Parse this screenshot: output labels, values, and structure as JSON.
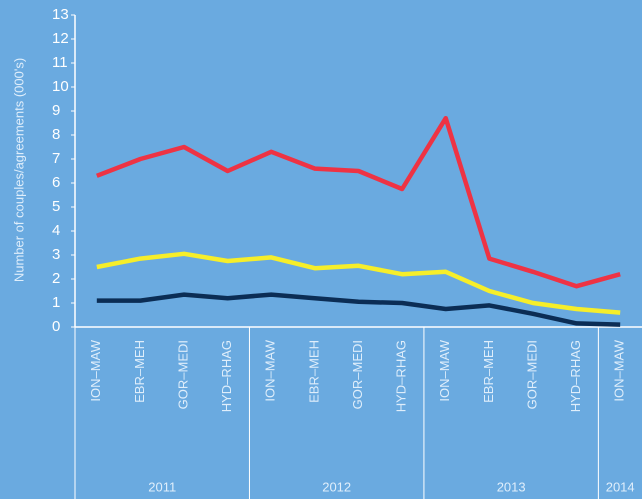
{
  "chart_data": {
    "type": "line",
    "y_label": "Number of couples/agreements (000's)",
    "categories": [
      "ION–MAW",
      "EBR–MEH",
      "GOR–MEDI",
      "HYD–RHAG",
      "ION–MAW",
      "EBR–MEH",
      "GOR–MEDI",
      "HYD–RHAG",
      "ION–MAW",
      "EBR–MEH",
      "GOR–MEDI",
      "HYD–RHAG",
      "ION–MAW"
    ],
    "groups": [
      {
        "label": "2011",
        "count": 4
      },
      {
        "label": "2012",
        "count": 4
      },
      {
        "label": "2013",
        "count": 4
      },
      {
        "label": "2014",
        "count": 1
      }
    ],
    "series": [
      {
        "name": "Red",
        "color": "#ee3344",
        "values": [
          6.3,
          7.0,
          7.5,
          6.5,
          7.3,
          6.6,
          6.5,
          5.75,
          8.7,
          2.85,
          2.3,
          1.7,
          2.2
        ]
      },
      {
        "name": "Yellow",
        "color": "#f6ee2a",
        "values": [
          2.5,
          2.85,
          3.05,
          2.75,
          2.9,
          2.45,
          2.55,
          2.2,
          2.3,
          1.5,
          1.0,
          0.75,
          0.6
        ]
      },
      {
        "name": "Navy",
        "color": "#0b2d55",
        "values": [
          1.1,
          1.1,
          1.35,
          1.2,
          1.35,
          1.2,
          1.05,
          1.0,
          0.75,
          0.9,
          0.55,
          0.15,
          0.1
        ]
      }
    ],
    "ylim": [
      0,
      13
    ],
    "yticks": [
      0,
      1,
      2,
      3,
      4,
      5,
      6,
      7,
      8,
      9,
      10,
      11,
      12,
      13
    ]
  }
}
